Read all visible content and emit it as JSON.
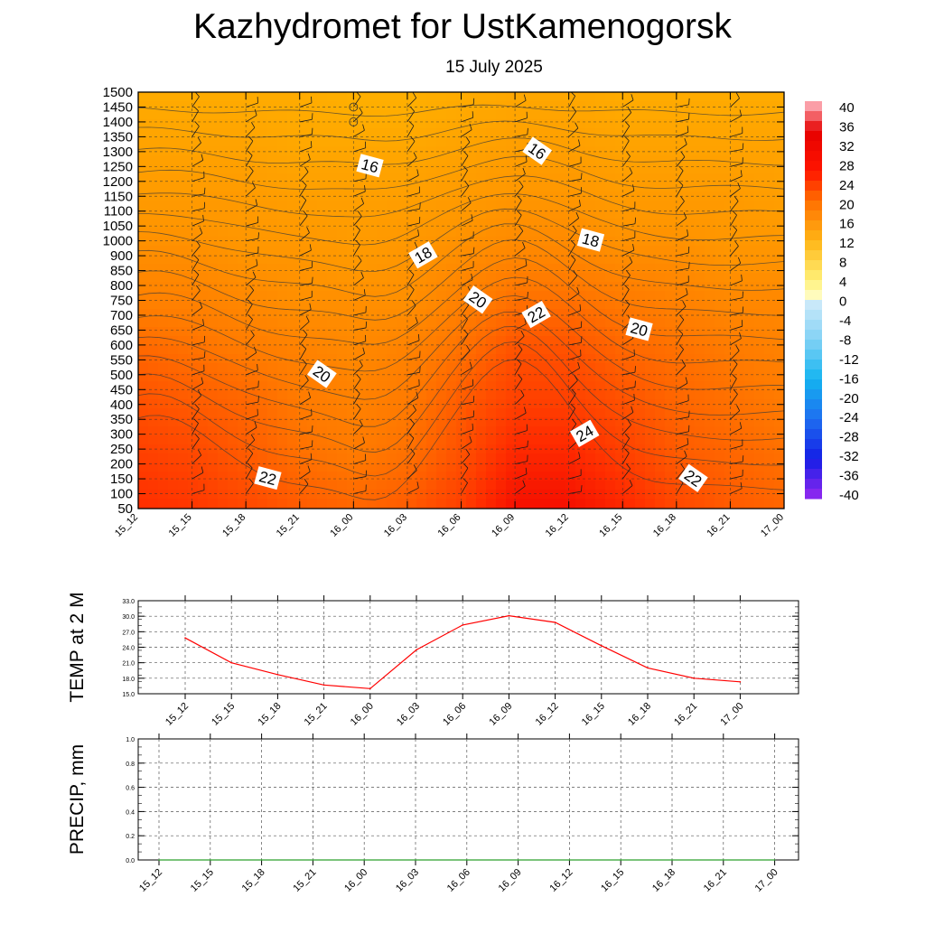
{
  "title": "Kazhydromet  for UstKamenogorsk",
  "subtitle": "15 July 2025",
  "time_labels": [
    "15_12",
    "15_15",
    "15_18",
    "15_21",
    "16_00",
    "16_03",
    "16_06",
    "16_09",
    "16_12",
    "16_15",
    "16_18",
    "16_21",
    "17_00"
  ],
  "chart_data": [
    {
      "type": "heatmap",
      "title": "",
      "xlabel": "",
      "ylabel": "",
      "x": [
        "15_12",
        "15_15",
        "15_18",
        "15_21",
        "16_00",
        "16_03",
        "16_06",
        "16_09",
        "16_12",
        "16_15",
        "16_18",
        "16_21",
        "17_00"
      ],
      "y_levels": [
        50,
        100,
        150,
        200,
        250,
        300,
        350,
        400,
        450,
        500,
        550,
        600,
        650,
        700,
        750,
        800,
        850,
        900,
        1000,
        1050,
        1100,
        1150,
        1200,
        1250,
        1300,
        1350,
        1400,
        1450,
        1500
      ],
      "colorbar": {
        "ticks": [
          40,
          36,
          32,
          28,
          24,
          20,
          16,
          12,
          8,
          4,
          0,
          -4,
          -8,
          -12,
          -16,
          -20,
          -24,
          -28,
          -32,
          -36,
          -40
        ],
        "range": [
          -40,
          40
        ]
      },
      "contour_labels": [
        {
          "value": "16",
          "time": "16_00",
          "level": 1250
        },
        {
          "value": "16",
          "time": "16_09",
          "level": 1300
        },
        {
          "value": "18",
          "time": "16_03",
          "level": 900
        },
        {
          "value": "18",
          "time": "16_12",
          "level": 1000
        },
        {
          "value": "20",
          "time": "16_06",
          "level": 750
        },
        {
          "value": "22",
          "time": "16_09",
          "level": 700
        },
        {
          "value": "20",
          "time": "16_15",
          "level": 650
        },
        {
          "value": "20",
          "time": "15_21",
          "level": 500
        },
        {
          "value": "24",
          "time": "16_12",
          "level": 300
        },
        {
          "value": "22",
          "time": "15_18",
          "level": 150
        },
        {
          "value": "22",
          "time": "16_18",
          "level": 150
        }
      ],
      "temperature_grid_c": [
        [
          24,
          23.5,
          22.5,
          21.5,
          21,
          21.5,
          23,
          26,
          26,
          24.5,
          22.5,
          21.5,
          21
        ],
        [
          23,
          22.5,
          21.5,
          20.5,
          20,
          20.5,
          22,
          24.5,
          24.5,
          23,
          21.5,
          21,
          20.5
        ],
        [
          22,
          21.5,
          21,
          20,
          19.5,
          20,
          21.5,
          23,
          23,
          22,
          21,
          20.5,
          20
        ],
        [
          21,
          20.5,
          20,
          19.5,
          19,
          19.5,
          20.5,
          22,
          22,
          21,
          20.5,
          20,
          19.5
        ],
        [
          19.5,
          19.5,
          19,
          18.5,
          18.5,
          18.5,
          19.5,
          20.5,
          20.5,
          20,
          19.5,
          19,
          19
        ],
        [
          18.5,
          18.5,
          18,
          18,
          17.5,
          18,
          18.5,
          19,
          19,
          18.5,
          18.5,
          18,
          18
        ],
        [
          17.5,
          17.5,
          17.5,
          17,
          17,
          17,
          17.5,
          18,
          18,
          17.5,
          17.5,
          17.5,
          17
        ],
        [
          16.5,
          16.5,
          16.5,
          16,
          16,
          16,
          16.5,
          17,
          17,
          16.5,
          16.5,
          16.5,
          16.5
        ],
        [
          15.5,
          15.5,
          15.5,
          15.5,
          15,
          15,
          15.5,
          16,
          16,
          15.5,
          15.5,
          15.5,
          15.5
        ]
      ]
    },
    {
      "type": "line",
      "ylabel": "TEMP at 2 M",
      "x": [
        "15_12",
        "15_15",
        "15_18",
        "15_21",
        "16_00",
        "16_03",
        "16_06",
        "16_09",
        "16_12",
        "16_15",
        "16_18",
        "16_21",
        "17_00"
      ],
      "series": [
        {
          "values": [
            25.8,
            21.0,
            18.7,
            16.7,
            16.0,
            23.5,
            28.3,
            30.1,
            28.8,
            24.3,
            20.0,
            18.0,
            17.3
          ]
        }
      ],
      "yticks": [
        "33.0",
        "30.0",
        "27.0",
        "24.0",
        "21.0",
        "18.0",
        "15.0"
      ],
      "ylim": [
        15,
        33
      ],
      "color": "#ff0000"
    },
    {
      "type": "line",
      "ylabel": "PRECIP, mm",
      "x": [
        "15_12",
        "15_15",
        "15_18",
        "15_21",
        "16_00",
        "16_03",
        "16_06",
        "16_09",
        "16_12",
        "16_15",
        "16_18",
        "16_21",
        "17_00"
      ],
      "series": [
        {
          "values": [
            0,
            0,
            0,
            0,
            0,
            0,
            0,
            0,
            0,
            0,
            0,
            0,
            0
          ]
        }
      ],
      "yticks": [
        "1.0",
        "0.8",
        "0.6",
        "0.4",
        "0.2",
        "0.0"
      ],
      "ylim": [
        0,
        1
      ],
      "color": "#2ca02c"
    }
  ]
}
